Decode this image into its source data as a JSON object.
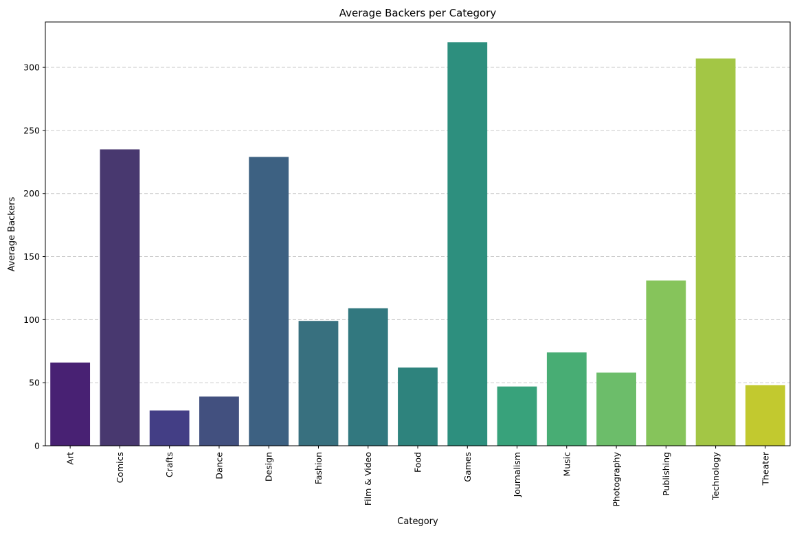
{
  "chart_data": {
    "type": "bar",
    "title": "Average Backers per Category",
    "xlabel": "Category",
    "ylabel": "Average Backers",
    "categories": [
      "Art",
      "Comics",
      "Crafts",
      "Dance",
      "Design",
      "Fashion",
      "Film & Video",
      "Food",
      "Games",
      "Journalism",
      "Music",
      "Photography",
      "Publishing",
      "Technology",
      "Theater"
    ],
    "values": [
      66,
      235,
      28,
      39,
      229,
      99,
      109,
      62,
      320,
      47,
      74,
      58,
      131,
      307,
      48
    ],
    "colors": [
      "#482173",
      "#48386f",
      "#433e85",
      "#42507f",
      "#3d6182",
      "#38707f",
      "#32787f",
      "#2e837d",
      "#2d8f7e",
      "#38a27b",
      "#48ad74",
      "#6cbd6a",
      "#86c45b",
      "#a3c645",
      "#c2c92f"
    ],
    "ylim": [
      0,
      336
    ],
    "yticks": [
      0,
      50,
      100,
      150,
      200,
      250,
      300
    ],
    "grid": "y-dashed",
    "legend": "none"
  }
}
